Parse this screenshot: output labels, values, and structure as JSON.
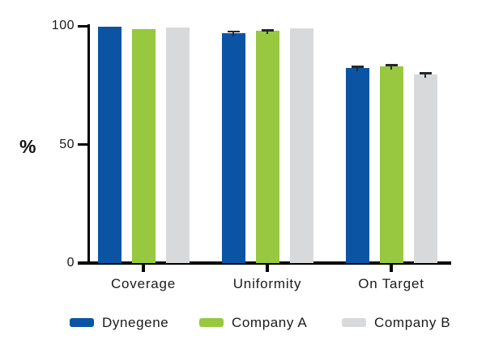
{
  "chart_data": {
    "type": "bar",
    "title": "",
    "categories": [
      "Coverage",
      "Uniformity",
      "On Target"
    ],
    "series": [
      {
        "name": "Dynegene",
        "color": "#0b54a4",
        "values": [
          99.8,
          97.0,
          82.3
        ],
        "errors": [
          0,
          0.7,
          0.6
        ]
      },
      {
        "name": "Company A",
        "color": "#97c83f",
        "values": [
          98.6,
          97.8,
          82.9
        ],
        "errors": [
          0,
          0.5,
          0.7
        ]
      },
      {
        "name": "Company B",
        "color": "#d8d9da",
        "values": [
          99.4,
          98.9,
          79.6
        ],
        "errors": [
          0,
          0,
          0.6
        ]
      }
    ],
    "xlabel": "",
    "ylabel": "%",
    "yticks": [
      "0",
      "50",
      "100"
    ],
    "ytick_values": [
      0,
      50,
      100
    ],
    "ylim": [
      0,
      100
    ],
    "grid": "off",
    "legend_position": "bottom",
    "axis_color": "#000000",
    "text_color": "#1b1b1b",
    "error_bar_color": "#26272b"
  }
}
